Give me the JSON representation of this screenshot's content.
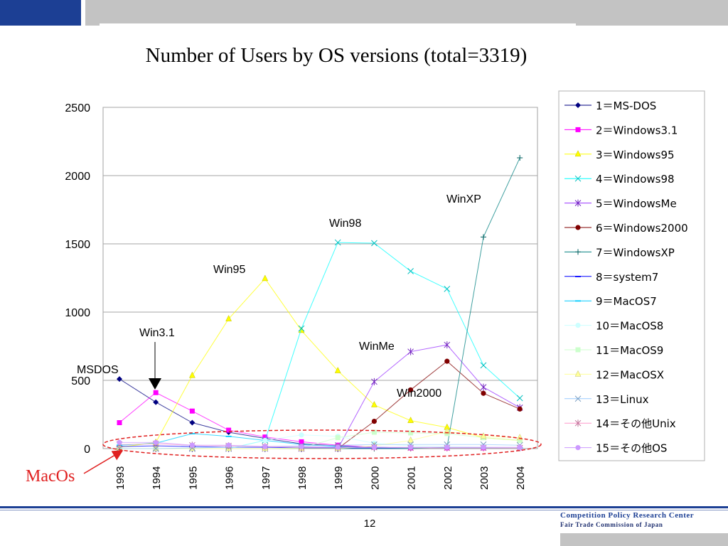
{
  "slide": {
    "title": "Number of Users by OS versions (total=3319)",
    "page_number": "12",
    "org_name": "Competition Policy Research Center",
    "org_sub": "Fair Trade Commission of Japan"
  },
  "colors": {
    "brand_blue": "#1c3f94",
    "band_gray": "#c3c3c3",
    "highlight_red": "#e02020"
  },
  "chart_data": {
    "type": "line",
    "title": "",
    "xlabel": "",
    "ylabel": "",
    "ylim": [
      0,
      2500
    ],
    "yticks": [
      0,
      500,
      1000,
      1500,
      2000,
      2500
    ],
    "grid": true,
    "legend_position": "right",
    "categories": [
      "1993",
      "1994",
      "1995",
      "1996",
      "1997",
      "1998",
      "1999",
      "2000",
      "2001",
      "2002",
      "2003",
      "2004"
    ],
    "series": [
      {
        "name": "1＝MS-DOS",
        "color": "#000080",
        "marker": "diamond",
        "values": [
          510,
          340,
          190,
          120,
          75,
          35,
          20,
          10,
          5,
          5,
          5,
          5
        ]
      },
      {
        "name": "2＝Windows3.1",
        "color": "#ff00ff",
        "marker": "square",
        "values": [
          190,
          410,
          275,
          135,
          85,
          50,
          25,
          10,
          5,
          5,
          5,
          5
        ]
      },
      {
        "name": "3＝Windows95",
        "color": "#ffff00",
        "marker": "triangle",
        "values": [
          10,
          45,
          535,
          950,
          1245,
          865,
          570,
          320,
          205,
          155,
          80,
          60
        ]
      },
      {
        "name": "4＝Windows98",
        "color": "#00ffff",
        "marker": "x",
        "values": [
          0,
          0,
          0,
          0,
          60,
          880,
          1510,
          1505,
          1300,
          1170,
          610,
          370
        ]
      },
      {
        "name": "5＝WindowsMe",
        "color": "#9933ff",
        "marker": "star",
        "values": [
          0,
          0,
          0,
          0,
          0,
          0,
          0,
          490,
          710,
          760,
          450,
          300
        ]
      },
      {
        "name": "6＝Windows2000",
        "color": "#800000",
        "marker": "circle",
        "values": [
          0,
          0,
          0,
          0,
          0,
          0,
          0,
          200,
          430,
          640,
          405,
          290
        ]
      },
      {
        "name": "7＝WindowsXP",
        "color": "#008080",
        "marker": "plus",
        "values": [
          0,
          0,
          0,
          0,
          0,
          0,
          0,
          0,
          0,
          10,
          1550,
          2130
        ]
      },
      {
        "name": "8＝system7",
        "color": "#0000ff",
        "marker": "dash",
        "values": [
          15,
          20,
          15,
          10,
          10,
          5,
          5,
          5,
          5,
          5,
          5,
          5
        ]
      },
      {
        "name": "9＝MacOS7",
        "color": "#00ccff",
        "marker": "dash",
        "values": [
          25,
          40,
          110,
          90,
          60,
          30,
          15,
          10,
          5,
          5,
          5,
          5
        ]
      },
      {
        "name": "10＝MacOS8",
        "color": "#ccffff",
        "marker": "circle",
        "values": [
          0,
          0,
          0,
          0,
          60,
          100,
          90,
          40,
          20,
          15,
          10,
          5
        ]
      },
      {
        "name": "11＝MacOS9",
        "color": "#ccffcc",
        "marker": "square",
        "values": [
          0,
          0,
          0,
          0,
          0,
          5,
          80,
          120,
          115,
          110,
          80,
          60
        ]
      },
      {
        "name": "12＝MacOSX",
        "color": "#ffff99",
        "marker": "triangle",
        "values": [
          0,
          0,
          0,
          0,
          0,
          0,
          0,
          20,
          60,
          125,
          90,
          80
        ]
      },
      {
        "name": "13＝Linux",
        "color": "#99ccff",
        "marker": "x",
        "values": [
          0,
          0,
          5,
          10,
          15,
          20,
          25,
          30,
          30,
          30,
          30,
          25
        ]
      },
      {
        "name": "14＝その他Unix",
        "color": "#ff99cc",
        "marker": "star",
        "values": [
          30,
          35,
          25,
          20,
          15,
          10,
          10,
          10,
          5,
          5,
          5,
          5
        ]
      },
      {
        "name": "15＝その他OS",
        "color": "#cc99ff",
        "marker": "circle",
        "values": [
          45,
          45,
          25,
          25,
          15,
          15,
          10,
          10,
          10,
          10,
          10,
          10
        ]
      }
    ],
    "annotations": [
      {
        "text": "MSDOS",
        "x": "1993",
        "y": 510
      },
      {
        "text": "Win3.1",
        "x": "1994",
        "y": 410
      },
      {
        "text": "Win95",
        "x": "1996",
        "y": 1245
      },
      {
        "text": "Win98",
        "x": "1999",
        "y": 1510
      },
      {
        "text": "WinXP",
        "x": "2002",
        "y": 1550
      },
      {
        "text": "WinMe",
        "x": "2000",
        "y": 710
      },
      {
        "text": "Win2000",
        "x": "2001",
        "y": 430
      },
      {
        "text": "MacOs",
        "x": "1993",
        "y": 0
      }
    ]
  }
}
